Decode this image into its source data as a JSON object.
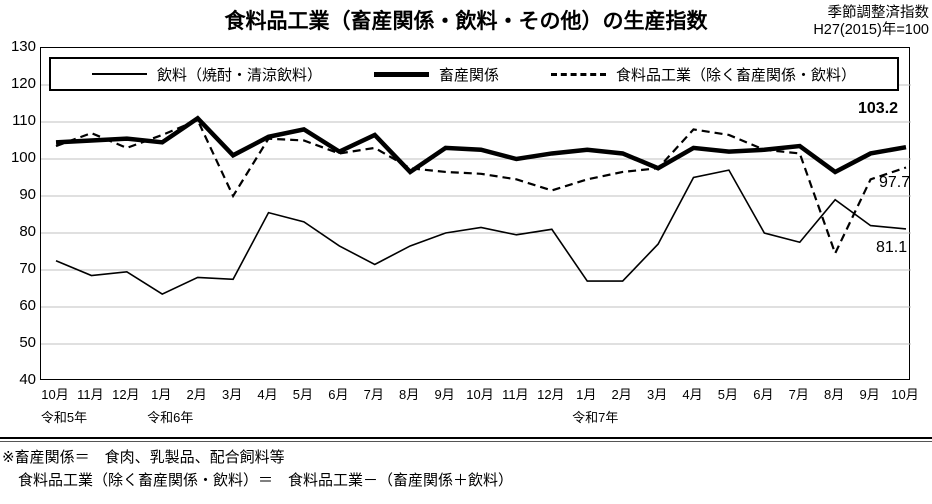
{
  "title": "食料品工業（畜産関係・飲料・その他）の生産指数",
  "subtitle_line1": "季節調整済指数",
  "subtitle_line2": "H27(2015)年=100",
  "legend": {
    "beverage": "飲料（焼酎・清涼飲料）",
    "livestock": "畜産関係",
    "food_industry": "食料品工業（除く畜産関係・飲料）"
  },
  "annotations": {
    "livestock_end": "103.2",
    "food_end": "97.7",
    "beverage_end": "81.1"
  },
  "notes": {
    "line1": "※畜産関係＝　食肉、乳製品、配合飼料等",
    "line2": "食料品工業（除く畜産関係・飲料）＝　食料品工業－（畜産関係＋飲料）"
  },
  "colors": {
    "line": "#000000",
    "grid": "#c2c2c2",
    "background": "#ffffff"
  },
  "chart_data": {
    "type": "line",
    "title": "食料品工業（畜産関係・飲料・その他）の生産指数",
    "index_base": "H27(2015)年=100",
    "categories": [
      "10月",
      "11月",
      "12月",
      "1月",
      "2月",
      "3月",
      "4月",
      "5月",
      "6月",
      "7月",
      "8月",
      "9月",
      "10月",
      "11月",
      "12月",
      "1月",
      "2月",
      "3月",
      "4月",
      "5月",
      "6月",
      "7月",
      "8月",
      "9月",
      "10月"
    ],
    "era_labels": [
      {
        "label": "令和5年",
        "index": 0
      },
      {
        "label": "令和6年",
        "index": 3
      },
      {
        "label": "令和7年",
        "index": 15
      }
    ],
    "ylim": [
      40,
      130
    ],
    "ytick_step": 10,
    "grid": true,
    "legend_position": "top-inside",
    "series": [
      {
        "name": "飲料（焼酎・清涼飲料）",
        "style": "thin-solid",
        "values": [
          72.5,
          68.5,
          69.5,
          63.5,
          68,
          67.5,
          85.5,
          83,
          76.5,
          71.5,
          76.5,
          80,
          81.5,
          79.5,
          81,
          67,
          67,
          77,
          95,
          97,
          80,
          77.5,
          89,
          82,
          81.1
        ]
      },
      {
        "name": "畜産関係",
        "style": "thick-solid",
        "values": [
          104.5,
          105,
          105.5,
          104.5,
          111,
          101,
          106,
          108,
          102,
          106.5,
          96.5,
          103,
          102.5,
          100,
          101.5,
          102.5,
          101.5,
          97.5,
          103,
          102,
          102.5,
          103.5,
          96.5,
          101.5,
          103.2
        ]
      },
      {
        "name": "食料品工業（除く畜産関係・飲料）",
        "style": "dashed",
        "values": [
          103.5,
          107,
          103,
          106.5,
          110.5,
          90,
          105.5,
          105,
          101.5,
          103,
          97.5,
          96.5,
          96,
          94.5,
          91.5,
          94.5,
          96.5,
          97.5,
          108,
          106.5,
          102.5,
          101.5,
          74.5,
          94.5,
          97.7
        ]
      }
    ]
  }
}
